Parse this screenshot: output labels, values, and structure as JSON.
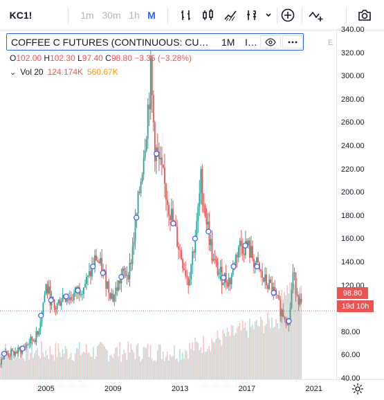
{
  "toolbar": {
    "symbol": "KC1!",
    "timeframes": [
      "1m",
      "30m",
      "1h",
      "M"
    ],
    "active_timeframe": "M"
  },
  "legend": {
    "title": "COFFEE C FUTURES (CONTINUOUS: CU…",
    "interval": "1M",
    "exchange": "I…",
    "eye_icon": "eye-icon",
    "more_icon": "more-dots-icon",
    "o_label": "O",
    "o_value": "102.00",
    "h_label": "H",
    "h_value": "102.30",
    "l_label": "L",
    "l_value": "97.40",
    "c_label": "C",
    "c_value": "98.80",
    "change": "−3.35 (−3.28%)",
    "vol_label": "Vol",
    "vol_period": "20",
    "vol_value": "124.174K",
    "vol_ma_value": "560.67K"
  },
  "axis": {
    "e_label": "E",
    "y_ticks": [
      "340.00",
      "320.00",
      "300.00",
      "280.00",
      "260.00",
      "240.00",
      "220.00",
      "200.00",
      "180.00",
      "160.00",
      "140.00",
      "120.00",
      "100.00",
      "80.00",
      "60.00",
      "40.00"
    ],
    "x_ticks": [
      "2005",
      "2009",
      "2013",
      "2017",
      "2021"
    ],
    "price_tag": "98.80",
    "countdown_tag": "19d 10h"
  },
  "colors": {
    "up": "#26a69a",
    "down": "#ef5350",
    "accent": "#2962ff"
  },
  "chart_data": {
    "type": "candlestick",
    "interval": "monthly",
    "ylim": [
      40,
      340
    ],
    "last_price": 98.8,
    "series": [
      {
        "name": "price",
        "x": [
          2002.0,
          2002.5,
          2003.0,
          2003.5,
          2004.0,
          2004.5,
          2005.0,
          2005.5,
          2006.0,
          2006.5,
          2007.0,
          2007.5,
          2008.0,
          2008.5,
          2009.0,
          2009.5,
          2010.0,
          2010.5,
          2011.0,
          2011.25,
          2011.5,
          2012.0,
          2012.5,
          2013.0,
          2013.5,
          2014.0,
          2014.25,
          2014.5,
          2015.0,
          2015.5,
          2016.0,
          2016.5,
          2017.0,
          2017.5,
          2018.0,
          2018.5,
          2019.0,
          2019.25,
          2019.5,
          2019.75,
          2020.0,
          2020.3
        ],
        "values": [
          50,
          62,
          62,
          65,
          72,
          78,
          120,
          100,
          112,
          110,
          118,
          125,
          145,
          128,
          110,
          128,
          135,
          190,
          260,
          300,
          240,
          210,
          180,
          150,
          125,
          170,
          210,
          185,
          140,
          128,
          125,
          155,
          155,
          140,
          125,
          118,
          100,
          95,
          90,
          130,
          115,
          98.8
        ]
      }
    ],
    "volume_note": "monthly volume bars shown below price, scale not labeled"
  }
}
